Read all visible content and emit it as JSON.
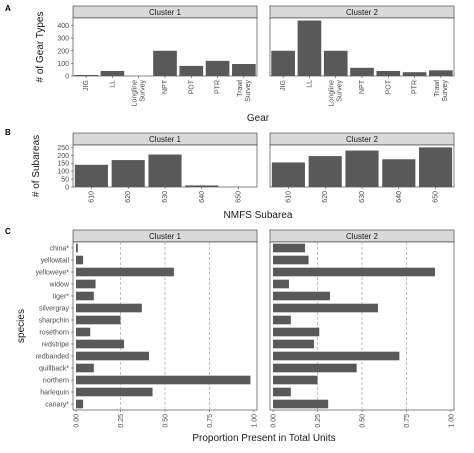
{
  "chart_data": [
    {
      "panel": "A",
      "type": "bar",
      "facets": [
        "Cluster 1",
        "Cluster 2"
      ],
      "categories": [
        "JIG",
        "LL",
        "Longline Survey",
        "NPT",
        "POT",
        "PTR",
        "Trawl Survey"
      ],
      "category_labels": [
        [
          "JIG"
        ],
        [
          "LL"
        ],
        [
          "Longline",
          "Survey"
        ],
        [
          "NPT"
        ],
        [
          "POT"
        ],
        [
          "PTR"
        ],
        [
          "Trawl",
          "Survey"
        ]
      ],
      "series": [
        {
          "name": "Cluster 1",
          "values": [
            8,
            40,
            0,
            200,
            80,
            120,
            95
          ]
        },
        {
          "name": "Cluster 2",
          "values": [
            200,
            440,
            200,
            65,
            40,
            30,
            45
          ]
        }
      ],
      "xlabel": "Gear",
      "ylabel": "# of Gear Types",
      "ylim": [
        0,
        460
      ],
      "yticks": [
        0,
        100,
        200,
        300,
        400
      ]
    },
    {
      "panel": "B",
      "type": "bar",
      "facets": [
        "Cluster 1",
        "Cluster 2"
      ],
      "categories": [
        "610",
        "620",
        "630",
        "640",
        "650"
      ],
      "series": [
        {
          "name": "Cluster 1",
          "values": [
            140,
            170,
            205,
            10,
            0
          ]
        },
        {
          "name": "Cluster 2",
          "values": [
            155,
            195,
            230,
            175,
            250
          ]
        }
      ],
      "xlabel": "NMFS Subarea",
      "ylabel": "# of Subareas",
      "ylim": [
        0,
        265
      ],
      "yticks": [
        0,
        50,
        100,
        150,
        200,
        250
      ]
    },
    {
      "panel": "C",
      "type": "bar",
      "orientation": "horizontal",
      "facets": [
        "Cluster 1",
        "Cluster 2"
      ],
      "categories": [
        "china*",
        "yellowtail",
        "yelloweye*",
        "widow",
        "tiger*",
        "silvergray",
        "sharpchin",
        "rosethorn",
        "redstripe",
        "redbanded",
        "quillback*",
        "northern",
        "harlequin",
        "canary*"
      ],
      "series": [
        {
          "name": "Cluster 1",
          "values": [
            0.01,
            0.04,
            0.55,
            0.11,
            0.1,
            0.37,
            0.25,
            0.08,
            0.27,
            0.41,
            0.1,
            0.98,
            0.43,
            0.04
          ]
        },
        {
          "name": "Cluster 2",
          "values": [
            0.18,
            0.2,
            0.91,
            0.09,
            0.32,
            0.59,
            0.1,
            0.26,
            0.23,
            0.71,
            0.47,
            0.25,
            0.1,
            0.31
          ]
        }
      ],
      "xlabel": "Proportion Present in Total Units",
      "ylabel": "species",
      "xlim": [
        0,
        1
      ],
      "xticks": [
        "0.00",
        "0.25",
        "0.50",
        "0.75",
        "1.00"
      ],
      "grid": "vertical dashed"
    }
  ]
}
